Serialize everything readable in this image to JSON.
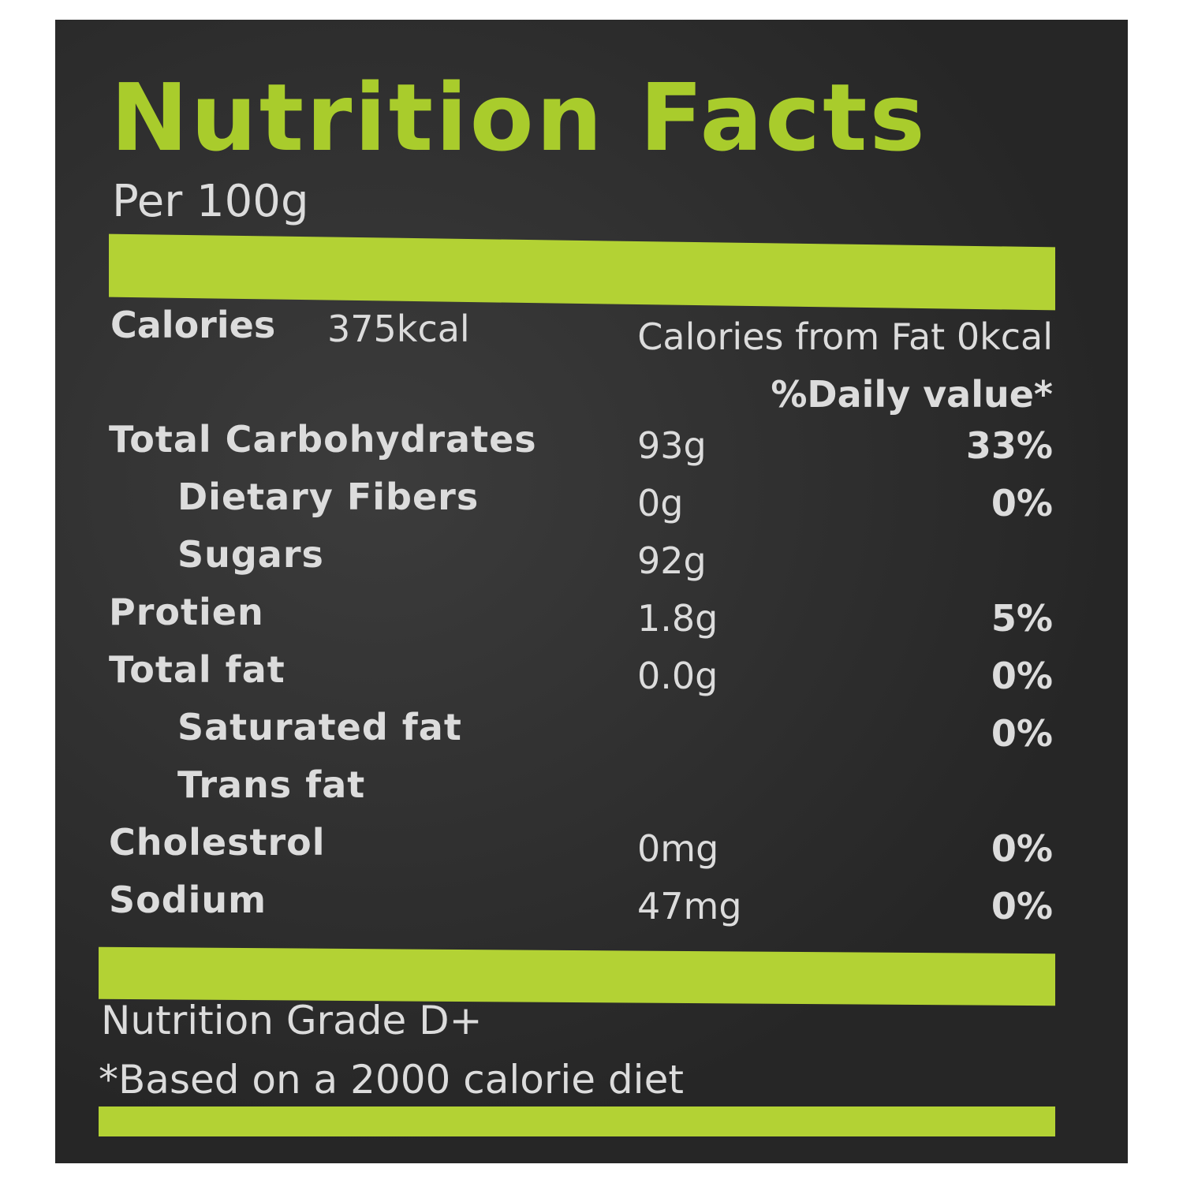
{
  "header": {
    "title": "Nutrition Facts",
    "serving": "Per 100g"
  },
  "calories": {
    "label": "Calories",
    "value": "375kcal",
    "from_fat": "Calories from Fat 0kcal"
  },
  "daily_value_header": "%Daily value*",
  "nutrients": [
    {
      "name": "Total Carbohydrates",
      "amount": "93g",
      "daily_value": "33%",
      "sub": [
        {
          "name": "Dietary Fibers",
          "amount": "0g",
          "daily_value": "0%"
        },
        {
          "name": "Sugars",
          "amount": "92g"
        }
      ]
    },
    {
      "name": "Protien",
      "amount": "1.8g",
      "daily_value": "5%"
    },
    {
      "name": "Total fat",
      "amount": "0.0g",
      "daily_value": "0%",
      "sub": [
        {
          "name": "Saturated fat",
          "daily_value": "0%"
        },
        {
          "name": "Trans fat"
        }
      ]
    },
    {
      "name": "Cholestrol",
      "amount": "0mg",
      "daily_value": "0%"
    },
    {
      "name": "Sodium",
      "amount": "47mg",
      "daily_value": "0%"
    }
  ],
  "footer": {
    "grade": "Nutrition Grade D+",
    "note": "*Based on a 2000 calorie diet"
  }
}
